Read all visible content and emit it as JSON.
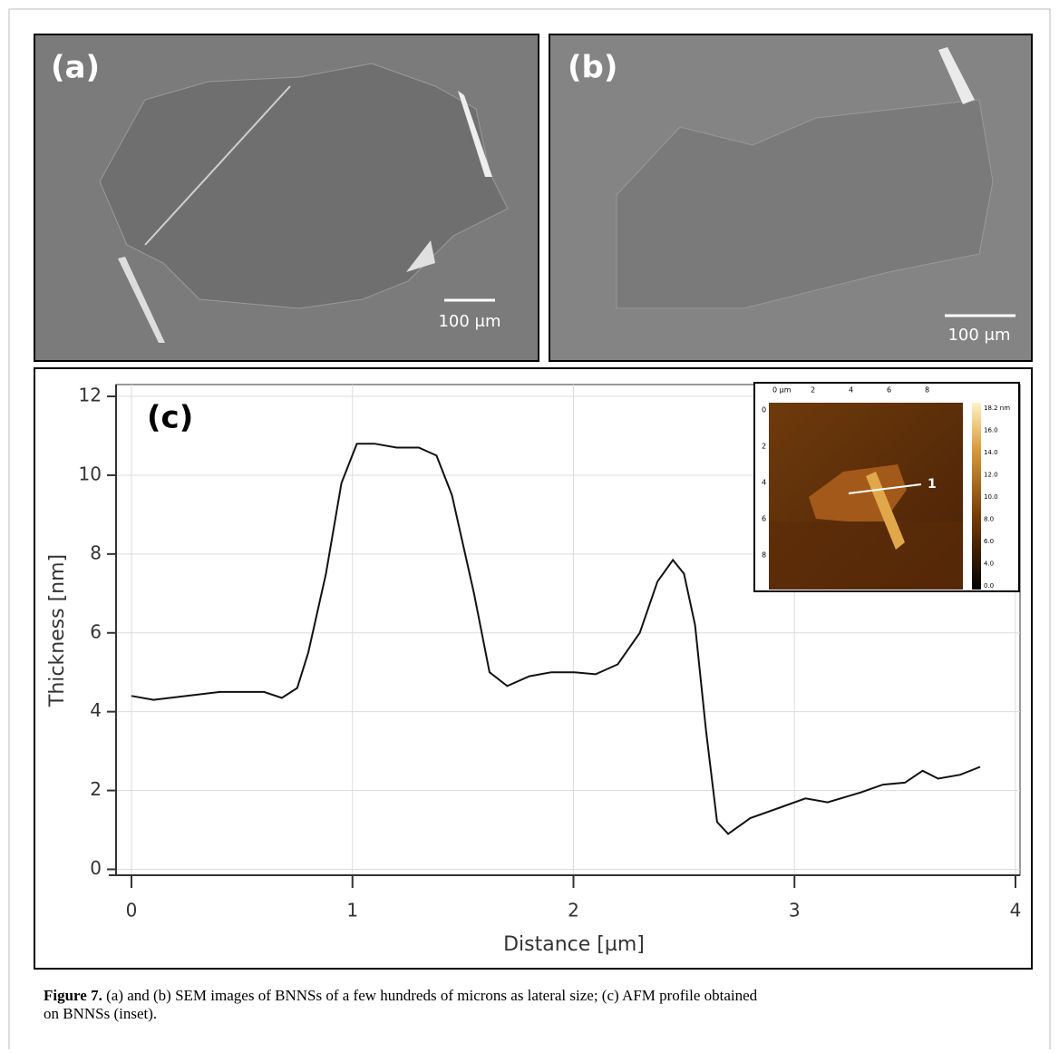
{
  "panels": {
    "a": {
      "label": "(a)",
      "scale": "100 μm"
    },
    "b": {
      "label": "(b)",
      "scale": "100 μm"
    }
  },
  "chart_data": {
    "type": "line",
    "label": "(c)",
    "xlabel": "Distance [µm]",
    "ylabel": "Thickness [nm]",
    "x": [
      0,
      0.1,
      0.25,
      0.4,
      0.6,
      0.68,
      0.75,
      0.8,
      0.88,
      0.95,
      1.02,
      1.1,
      1.2,
      1.3,
      1.38,
      1.45,
      1.55,
      1.62,
      1.7,
      1.8,
      1.9,
      2.0,
      2.1,
      2.2,
      2.3,
      2.38,
      2.45,
      2.5,
      2.55,
      2.6,
      2.65,
      2.7,
      2.8,
      2.95,
      3.05,
      3.15,
      3.3,
      3.4,
      3.5,
      3.58,
      3.65,
      3.75,
      3.84
    ],
    "values": [
      4.4,
      4.3,
      4.4,
      4.5,
      4.5,
      4.35,
      4.6,
      5.5,
      7.5,
      9.8,
      10.8,
      10.8,
      10.7,
      10.7,
      10.5,
      9.5,
      7,
      5,
      4.65,
      4.9,
      5,
      5,
      4.95,
      5.2,
      6,
      7.3,
      7.85,
      7.5,
      6.2,
      3.5,
      1.2,
      0.9,
      1.3,
      1.6,
      1.8,
      1.7,
      1.95,
      2.15,
      2.2,
      2.5,
      2.3,
      2.4,
      2.6
    ],
    "color": "#111111",
    "xlim": [
      0,
      4
    ],
    "xticks": [
      0,
      1,
      2,
      3,
      4
    ],
    "ylim": [
      -0.15,
      12.3
    ],
    "yticks": [
      0,
      2,
      4,
      6,
      8,
      10,
      12
    ],
    "grid": true
  },
  "inset": {
    "xticks": [
      "0 µm",
      "2",
      "4",
      "6",
      "8"
    ],
    "yticks": [
      "0",
      "2",
      "4",
      "6",
      "8"
    ],
    "colorbar": [
      "18.2 nm",
      "16.0",
      "14.0",
      "12.0",
      "10.0",
      "8.0",
      "6.0",
      "4.0",
      "0.0"
    ],
    "marker": "1"
  },
  "caption": {
    "label": "Figure 7.",
    "lines": [
      " (a) and (b) SEM images of BNNSs of a few hundreds of microns as lateral size; (c) AFM profile obtained",
      "on BNNSs (inset)."
    ]
  }
}
